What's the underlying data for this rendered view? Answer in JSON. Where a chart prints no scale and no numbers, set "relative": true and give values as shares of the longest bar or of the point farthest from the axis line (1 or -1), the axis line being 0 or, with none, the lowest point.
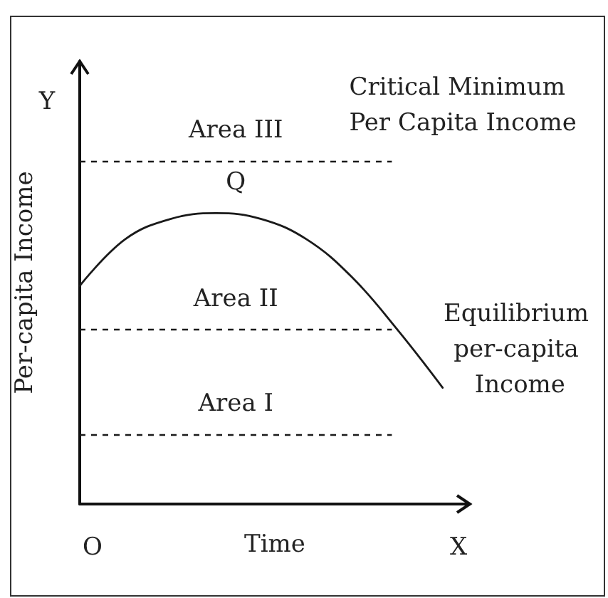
{
  "chart_data": {
    "type": "line",
    "xlabel": "Time",
    "ylabel": "Per-capita Income",
    "relative": true,
    "categories": [
      null,
      null,
      null,
      null,
      null,
      null,
      null,
      null,
      null
    ],
    "series": [
      {
        "color": "#1a1a1a",
        "values": [
          0.75,
          0.91,
          0.98,
          1.0,
          0.98,
          0.91,
          0.78,
          0.6,
          0.4
        ]
      }
    ],
    "ref_lines": [
      {
        "axis": "y",
        "value": 1.18,
        "label": "Critical Minimum Per Capita Income",
        "line_style": "dashed",
        "color": "#1a1a1a"
      },
      {
        "axis": "y",
        "value": 0.6,
        "label": "Equilibrium per-capita Income",
        "line_style": "dashed",
        "color": "#1a1a1a"
      },
      {
        "axis": "y",
        "value": 0.24,
        "line_style": "dashed",
        "color": "#1a1a1a"
      }
    ],
    "annotations": [
      {
        "text": "Area III",
        "y": 1.18
      },
      {
        "text": "Area II",
        "y": 0.6
      },
      {
        "text": "Area I",
        "y": 0.24
      },
      {
        "text": "Q",
        "y": 1
      },
      "O",
      "Y",
      "X"
    ]
  }
}
